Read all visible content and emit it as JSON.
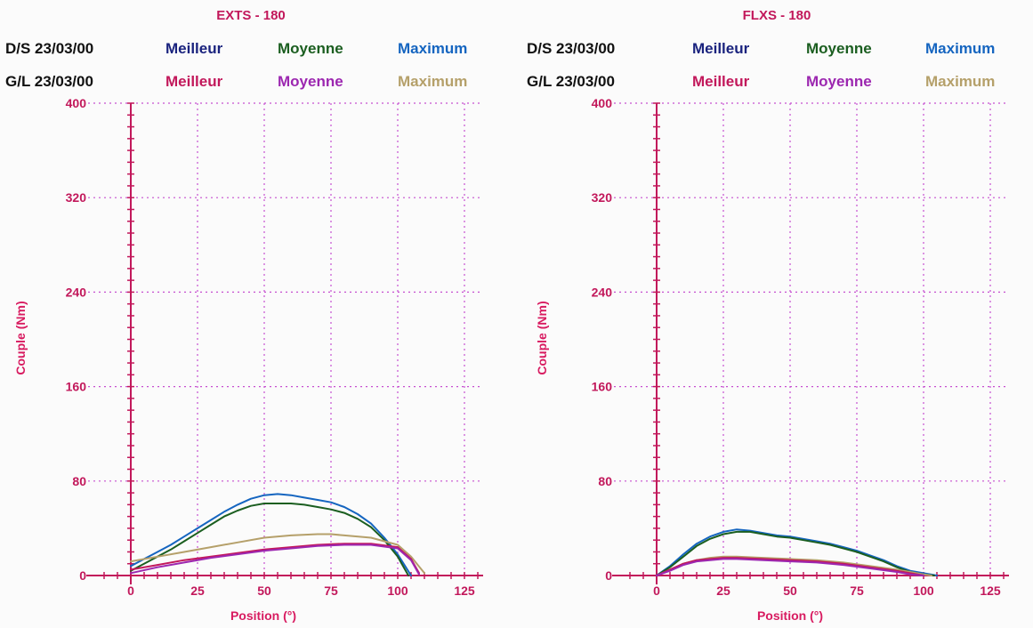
{
  "chart_data": [
    {
      "type": "line",
      "title": "EXTS - 180",
      "legend_rows": [
        {
          "label": "D/S 23/03/00",
          "entries": [
            {
              "name": "Meilleur",
              "color": "#1a237e"
            },
            {
              "name": "Moyenne",
              "color": "#1b5e20"
            },
            {
              "name": "Maximum",
              "color": "#1565c0"
            }
          ]
        },
        {
          "label": "G/L 23/03/00",
          "entries": [
            {
              "name": "Meilleur",
              "color": "#c2185b"
            },
            {
              "name": "Moyenne",
              "color": "#9c27b0"
            },
            {
              "name": "Maximum",
              "color": "#b5a06a"
            }
          ]
        }
      ],
      "xlabel": "Position (°)",
      "ylabel": "Couple (Nm)",
      "xlim": [
        0,
        130
      ],
      "ylim": [
        0,
        400
      ],
      "xticks": [
        0,
        25,
        50,
        75,
        100,
        125
      ],
      "yticks": [
        0,
        80,
        160,
        240,
        320,
        400
      ],
      "grid": true,
      "series": [
        {
          "name": "Maximum",
          "color": "#1565c0",
          "x": [
            0,
            5,
            10,
            15,
            20,
            25,
            30,
            35,
            40,
            45,
            50,
            55,
            60,
            65,
            70,
            75,
            80,
            85,
            90,
            95,
            100,
            105
          ],
          "y": [
            8,
            14,
            20,
            26,
            33,
            40,
            47,
            54,
            60,
            65,
            68,
            69,
            68,
            66,
            64,
            62,
            58,
            52,
            44,
            32,
            18,
            0
          ]
        },
        {
          "name": "Moyenne",
          "color": "#1b5e20",
          "x": [
            0,
            5,
            10,
            15,
            20,
            25,
            30,
            35,
            40,
            45,
            50,
            55,
            60,
            65,
            70,
            75,
            80,
            85,
            90,
            95,
            100,
            104
          ],
          "y": [
            4,
            10,
            16,
            22,
            29,
            36,
            43,
            50,
            55,
            59,
            61,
            61,
            61,
            60,
            58,
            56,
            53,
            48,
            41,
            30,
            16,
            0
          ]
        },
        {
          "name": "Maximum",
          "color": "#b5a06a",
          "x": [
            0,
            10,
            20,
            30,
            40,
            50,
            60,
            70,
            75,
            80,
            90,
            100,
            105,
            110
          ],
          "y": [
            12,
            16,
            20,
            24,
            28,
            32,
            34,
            35,
            35,
            34,
            32,
            26,
            16,
            2
          ]
        },
        {
          "name": "Meilleur",
          "color": "#c2185b",
          "x": [
            0,
            10,
            20,
            30,
            40,
            50,
            60,
            70,
            80,
            90,
            100,
            105,
            108
          ],
          "y": [
            5,
            9,
            13,
            16,
            19,
            22,
            24,
            26,
            27,
            27,
            24,
            14,
            2
          ]
        },
        {
          "name": "Moyenne",
          "color": "#9c27b0",
          "x": [
            0,
            10,
            20,
            30,
            40,
            50,
            60,
            70,
            80,
            90,
            100,
            105,
            108
          ],
          "y": [
            2,
            7,
            11,
            15,
            18,
            21,
            23,
            25,
            26,
            26,
            23,
            13,
            1
          ]
        }
      ]
    },
    {
      "type": "line",
      "title": "FLXS - 180",
      "legend_rows": [
        {
          "label": "D/S 23/03/00",
          "entries": [
            {
              "name": "Meilleur",
              "color": "#1a237e"
            },
            {
              "name": "Moyenne",
              "color": "#1b5e20"
            },
            {
              "name": "Maximum",
              "color": "#1565c0"
            }
          ]
        },
        {
          "label": "G/L 23/03/00",
          "entries": [
            {
              "name": "Meilleur",
              "color": "#c2185b"
            },
            {
              "name": "Moyenne",
              "color": "#9c27b0"
            },
            {
              "name": "Maximum",
              "color": "#b5a06a"
            }
          ]
        }
      ],
      "xlabel": "Position (°)",
      "ylabel": "Couple (Nm)",
      "xlim": [
        0,
        130
      ],
      "ylim": [
        0,
        400
      ],
      "xticks": [
        0,
        25,
        50,
        75,
        100,
        125
      ],
      "yticks": [
        0,
        80,
        160,
        240,
        320,
        400
      ],
      "grid": true,
      "series": [
        {
          "name": "Maximum",
          "color": "#1565c0",
          "x": [
            0,
            5,
            10,
            15,
            20,
            25,
            30,
            35,
            40,
            45,
            50,
            55,
            60,
            65,
            70,
            75,
            80,
            85,
            90,
            95,
            100,
            105
          ],
          "y": [
            0,
            8,
            18,
            27,
            33,
            37,
            39,
            38,
            36,
            34,
            33,
            31,
            29,
            27,
            24,
            21,
            17,
            13,
            8,
            4,
            2,
            0
          ]
        },
        {
          "name": "Moyenne",
          "color": "#1b5e20",
          "x": [
            0,
            5,
            10,
            15,
            20,
            25,
            30,
            35,
            40,
            45,
            50,
            55,
            60,
            65,
            70,
            75,
            80,
            85,
            90,
            95,
            100,
            104
          ],
          "y": [
            0,
            7,
            16,
            25,
            31,
            35,
            37,
            37,
            35,
            33,
            32,
            30,
            28,
            26,
            23,
            20,
            16,
            12,
            7,
            3,
            1,
            0
          ]
        },
        {
          "name": "Maximum",
          "color": "#b5a06a",
          "x": [
            0,
            5,
            10,
            15,
            20,
            25,
            30,
            40,
            50,
            60,
            70,
            80,
            90,
            95,
            100,
            103
          ],
          "y": [
            0,
            5,
            10,
            13,
            15,
            16,
            16,
            15,
            14,
            13,
            11,
            8,
            5,
            3,
            1,
            0
          ]
        },
        {
          "name": "Meilleur",
          "color": "#c2185b",
          "x": [
            0,
            5,
            10,
            15,
            20,
            25,
            30,
            40,
            50,
            60,
            70,
            80,
            90,
            95,
            100
          ],
          "y": [
            0,
            5,
            10,
            13,
            14,
            15,
            15,
            14,
            13,
            12,
            10,
            7,
            4,
            2,
            0
          ]
        },
        {
          "name": "Moyenne",
          "color": "#9c27b0",
          "x": [
            0,
            5,
            10,
            15,
            20,
            25,
            30,
            40,
            50,
            60,
            70,
            80,
            90,
            95,
            100
          ],
          "y": [
            0,
            4,
            9,
            12,
            13,
            14,
            14,
            13,
            12,
            11,
            9,
            6,
            3,
            1,
            0
          ]
        }
      ]
    }
  ]
}
